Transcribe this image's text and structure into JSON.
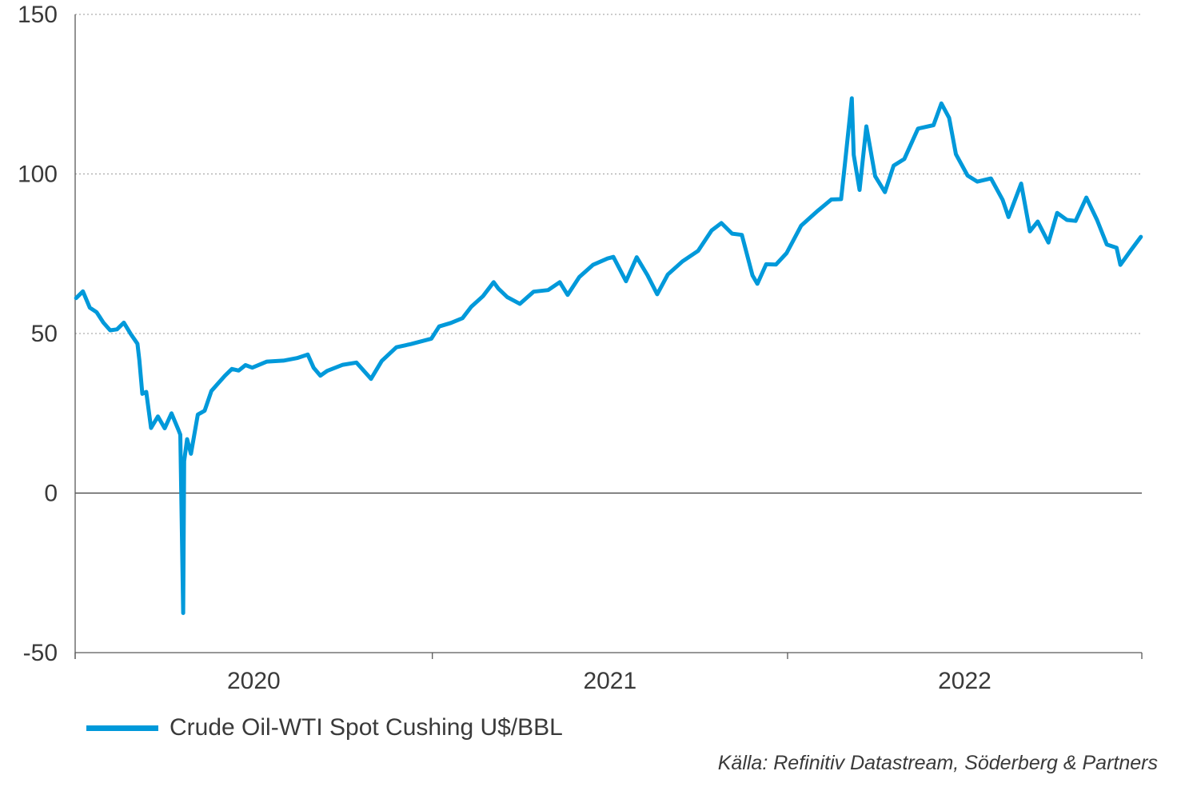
{
  "chart_data": {
    "type": "line",
    "series": [
      {
        "name": "Crude Oil-WTI Spot Cushing U$/BBL",
        "color": "#0099da",
        "x": [
          "2020-01-01",
          "2020-01-08",
          "2020-01-15",
          "2020-01-22",
          "2020-01-29",
          "2020-02-05",
          "2020-02-12",
          "2020-02-19",
          "2020-02-26",
          "2020-03-04",
          "2020-03-06",
          "2020-03-09",
          "2020-03-13",
          "2020-03-18",
          "2020-03-25",
          "2020-04-01",
          "2020-04-08",
          "2020-04-15",
          "2020-04-17",
          "2020-04-20",
          "2020-04-21",
          "2020-04-24",
          "2020-04-28",
          "2020-05-05",
          "2020-05-12",
          "2020-05-19",
          "2020-05-26",
          "2020-06-02",
          "2020-06-09",
          "2020-06-16",
          "2020-06-23",
          "2020-06-30",
          "2020-07-15",
          "2020-08-01",
          "2020-08-15",
          "2020-08-26",
          "2020-09-01",
          "2020-09-08",
          "2020-09-15",
          "2020-10-01",
          "2020-10-15",
          "2020-10-30",
          "2020-11-10",
          "2020-11-25",
          "2020-12-10",
          "2020-12-31",
          "2021-01-08",
          "2021-01-20",
          "2021-02-01",
          "2021-02-10",
          "2021-02-22",
          "2021-03-05",
          "2021-03-10",
          "2021-03-19",
          "2021-04-01",
          "2021-04-15",
          "2021-04-30",
          "2021-05-12",
          "2021-05-20",
          "2021-06-01",
          "2021-06-15",
          "2021-06-30",
          "2021-07-06",
          "2021-07-19",
          "2021-07-30",
          "2021-08-10",
          "2021-08-20",
          "2021-08-31",
          "2021-09-15",
          "2021-10-01",
          "2021-10-15",
          "2021-10-25",
          "2021-11-05",
          "2021-11-15",
          "2021-11-26",
          "2021-12-01",
          "2021-12-10",
          "2021-12-20",
          "2021-12-31",
          "2022-01-15",
          "2022-01-31",
          "2022-02-15",
          "2022-02-25",
          "2022-03-01",
          "2022-03-08",
          "2022-03-10",
          "2022-03-16",
          "2022-03-23",
          "2022-04-01",
          "2022-04-11",
          "2022-04-20",
          "2022-05-01",
          "2022-05-15",
          "2022-05-31",
          "2022-06-08",
          "2022-06-16",
          "2022-06-23",
          "2022-07-05",
          "2022-07-15",
          "2022-07-29",
          "2022-08-10",
          "2022-08-16",
          "2022-08-29",
          "2022-09-07",
          "2022-09-15",
          "2022-09-26",
          "2022-10-05",
          "2022-10-15",
          "2022-10-24",
          "2022-11-04",
          "2022-11-15",
          "2022-11-25",
          "2022-12-05",
          "2022-12-09",
          "2022-12-20",
          "2022-12-30"
        ],
        "y": [
          61.1,
          63.2,
          58.1,
          56.7,
          53.4,
          51.0,
          51.3,
          53.4,
          49.9,
          46.8,
          41.6,
          31.1,
          31.7,
          20.4,
          24.0,
          20.3,
          25.0,
          19.9,
          18.3,
          -37.6,
          10.0,
          16.9,
          12.3,
          24.6,
          25.8,
          32.0,
          34.4,
          36.8,
          38.9,
          38.4,
          40.1,
          39.3,
          41.2,
          41.5,
          42.3,
          43.4,
          39.3,
          36.8,
          38.3,
          40.2,
          40.9,
          35.8,
          41.4,
          45.7,
          46.7,
          48.4,
          52.2,
          53.3,
          54.8,
          58.4,
          61.7,
          66.1,
          64.0,
          61.4,
          59.3,
          63.1,
          63.6,
          66.1,
          62.1,
          67.7,
          71.5,
          73.5,
          74.0,
          66.4,
          73.9,
          68.3,
          62.3,
          68.5,
          72.6,
          75.9,
          82.3,
          84.6,
          81.3,
          80.9,
          68.2,
          65.6,
          71.7,
          71.6,
          75.2,
          83.8,
          88.2,
          92.0,
          92.1,
          103.4,
          123.7,
          106.0,
          95.0,
          114.9,
          99.3,
          94.3,
          102.6,
          104.7,
          114.2,
          115.3,
          122.1,
          117.6,
          106.2,
          99.5,
          97.6,
          98.6,
          91.9,
          86.5,
          97.0,
          82.0,
          85.1,
          78.5,
          87.8,
          85.6,
          85.3,
          92.6,
          85.6,
          77.9,
          76.9,
          71.5,
          76.2,
          80.3
        ]
      }
    ],
    "x_tick_labels": [
      "2020",
      "2021",
      "2022"
    ],
    "x_range": [
      "2019-12-31",
      "2022-12-31"
    ],
    "y_ticks": [
      -50,
      0,
      50,
      100,
      150
    ],
    "ylim": [
      -50,
      150
    ],
    "grid": "horizontal dotted at 50, 100, 150",
    "legend": "bottom-left"
  },
  "legend_label": "Crude Oil-WTI Spot Cushing U$/BBL",
  "source": "Källa: Refinitiv Datastream, Söderberg & Partners"
}
